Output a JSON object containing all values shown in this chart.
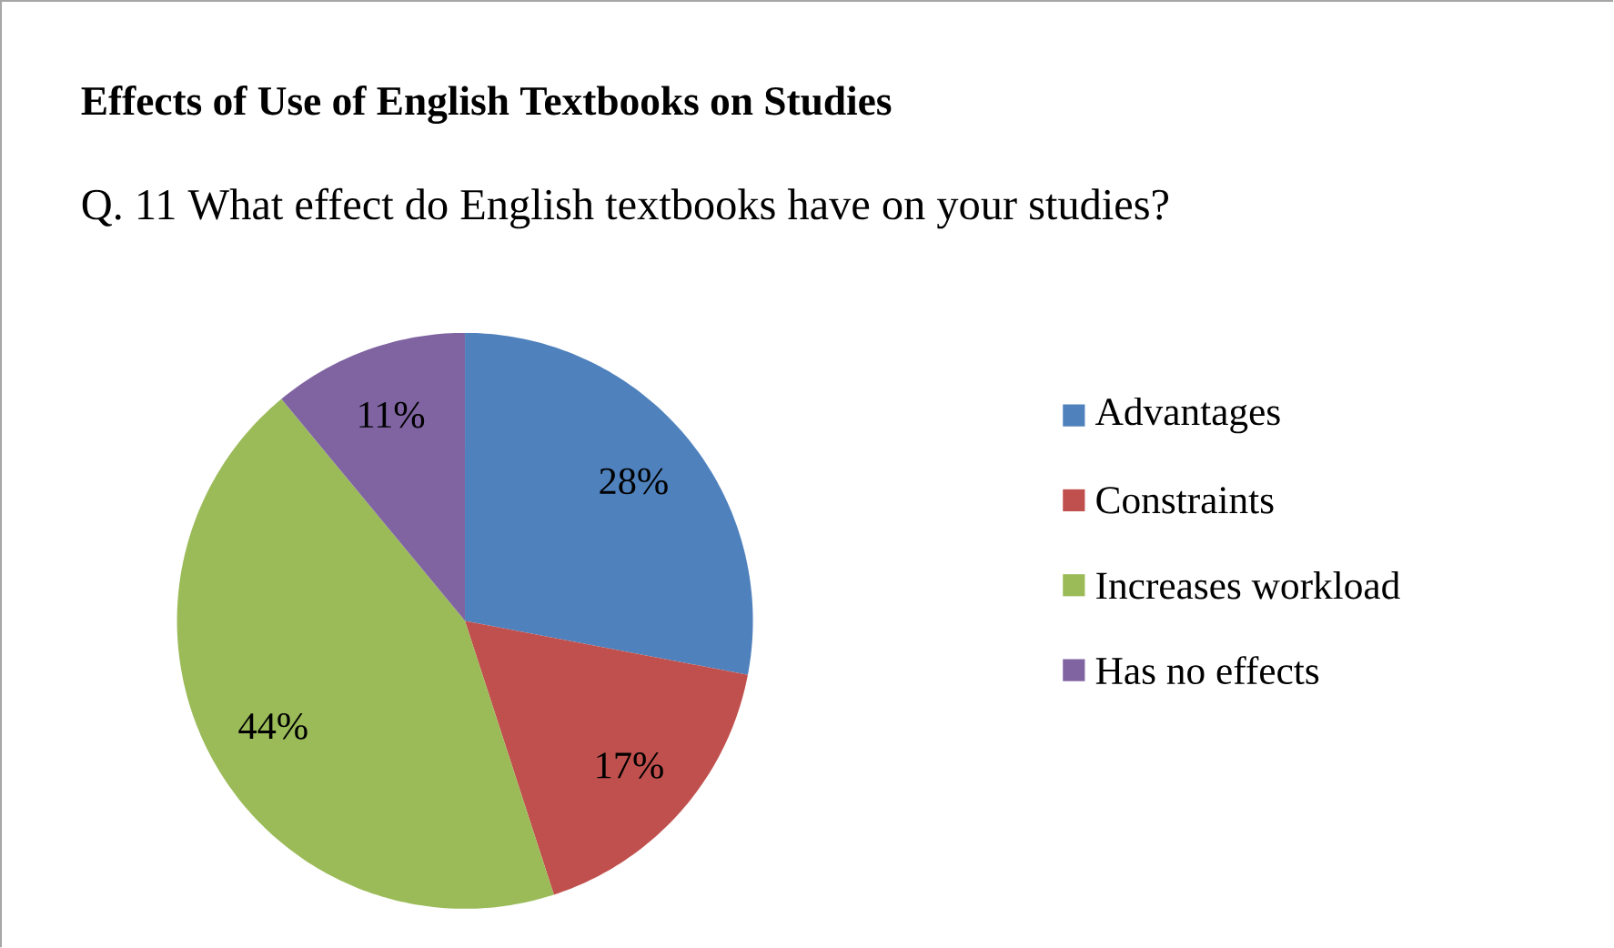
{
  "chart_data": {
    "type": "pie",
    "title": "Effects of Use of English Textbooks on Studies",
    "subtitle": "Q. 11 What effect do English textbooks have on your studies?",
    "categories": [
      "Advantages",
      "Constraints",
      "Increases workload",
      "Has no effects"
    ],
    "values": [
      28,
      17,
      44,
      11
    ],
    "value_labels": [
      "28%",
      "17%",
      "44%",
      "11%"
    ],
    "colors": [
      "#4f81bd",
      "#c0504d",
      "#9bbb59",
      "#8064a2"
    ],
    "legend": "right"
  }
}
